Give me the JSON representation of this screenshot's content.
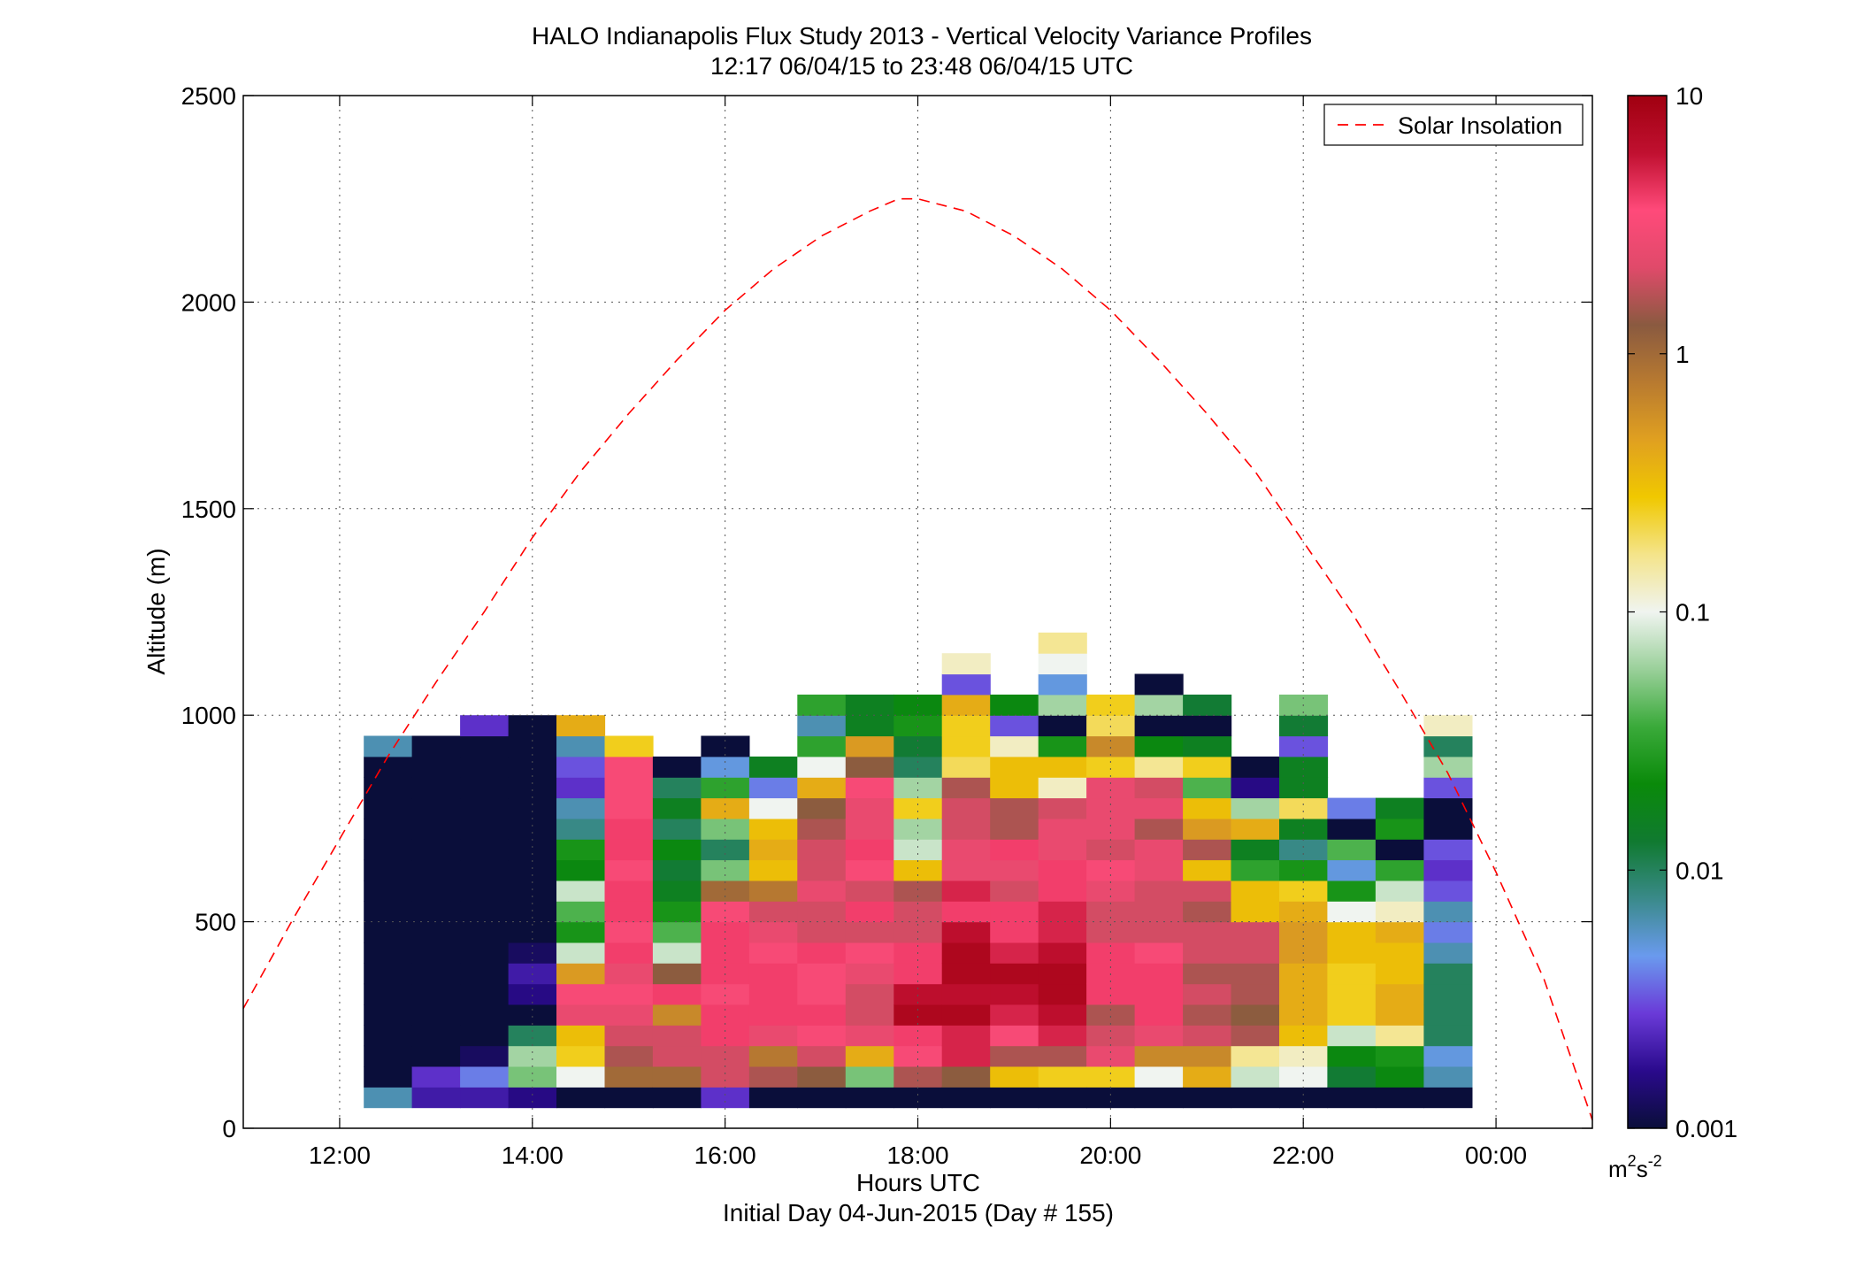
{
  "chart_data": {
    "type": "heatmap",
    "title": "HALO Indianapolis Flux Study 2013 - Vertical Velocity Variance Profiles",
    "subtitle": "12:17 06/04/15 to 23:48 06/04/15  UTC",
    "xlabel": "Hours UTC",
    "xlabel2": "Initial Day 04-Jun-2015 (Day # 155)",
    "ylabel": "Altitude (m)",
    "xlim": [
      11.0,
      25.0
    ],
    "ylim": [
      0,
      2500
    ],
    "grid": true,
    "x_ticks": [
      {
        "value": 12,
        "label": "12:00"
      },
      {
        "value": 14,
        "label": "14:00"
      },
      {
        "value": 16,
        "label": "16:00"
      },
      {
        "value": 18,
        "label": "18:00"
      },
      {
        "value": 20,
        "label": "20:00"
      },
      {
        "value": 22,
        "label": "22:00"
      },
      {
        "value": 24,
        "label": "00:00"
      }
    ],
    "y_ticks": [
      {
        "value": 0,
        "label": "0"
      },
      {
        "value": 500,
        "label": "500"
      },
      {
        "value": 1000,
        "label": "1000"
      },
      {
        "value": 1500,
        "label": "1500"
      },
      {
        "value": 2000,
        "label": "2000"
      },
      {
        "value": 2500,
        "label": "2500"
      }
    ],
    "cell_width_hours": 0.5,
    "cell_height_m": 50,
    "bin_start_altitude_m": 50,
    "colorbar": {
      "scale": "log",
      "range": [
        0.001,
        10
      ],
      "ticks": [
        {
          "value": 0.001,
          "label": "0.001"
        },
        {
          "value": 0.01,
          "label": "0.01"
        },
        {
          "value": 0.1,
          "label": "0.1"
        },
        {
          "value": 1,
          "label": "1"
        },
        {
          "value": 10,
          "label": "10"
        }
      ],
      "unit_base": "m",
      "unit_sup1": "2",
      "unit_mid": "s",
      "unit_sup2": "-2",
      "stops": [
        "#0a0e3a",
        "#2a0a8c",
        "#6a3ad8",
        "#6a9aee",
        "#3a8a8a",
        "#107a30",
        "#0a8a0a",
        "#3aaa3a",
        "#9ad09a",
        "#f0f4f0",
        "#f4e48a",
        "#f0c800",
        "#e0a020",
        "#b87a30",
        "#8a5a40",
        "#e04a6a",
        "#ff4a7a",
        "#c01030",
        "#a00010"
      ]
    },
    "legend": {
      "placement": "top-right",
      "entries": [
        {
          "name": "Solar Insolation",
          "color": "#ff0000",
          "style": "dashed"
        }
      ]
    },
    "series": [
      {
        "name": "Solar Insolation",
        "type": "line",
        "x": [
          11.0,
          11.5,
          12.0,
          12.5,
          13.0,
          13.5,
          14.0,
          14.5,
          15.0,
          15.5,
          16.0,
          16.5,
          17.0,
          17.5,
          17.8,
          18.0,
          18.5,
          19.0,
          19.5,
          20.0,
          20.5,
          21.0,
          21.5,
          22.0,
          22.5,
          23.0,
          23.5,
          24.0,
          24.5,
          25.0
        ],
        "y": [
          290,
          500,
          700,
          900,
          1080,
          1250,
          1430,
          1590,
          1730,
          1860,
          1980,
          2080,
          2160,
          2220,
          2250,
          2250,
          2220,
          2160,
          2080,
          1980,
          1860,
          1730,
          1590,
          1420,
          1250,
          1060,
          860,
          620,
          360,
          20
        ]
      }
    ],
    "columns": [
      {
        "x": 12.5,
        "log_values": [
          -2.2,
          -3.0,
          -3.0,
          -3.0,
          -3.0,
          -3.0,
          -3.0,
          -3.0,
          -3.0,
          -3.0,
          -3.0,
          -3.0,
          -3.0,
          -3.0,
          -3.0,
          -3.0,
          -3.0,
          -2.2
        ]
      },
      {
        "x": 13.0,
        "log_values": [
          -2.7,
          -2.6,
          -3.0,
          -3.0,
          -3.0,
          -3.0,
          -3.0,
          -3.0,
          -3.0,
          -3.0,
          -3.0,
          -3.0,
          -3.0,
          -3.0,
          -3.0,
          -3.0,
          -3.0,
          -3.0
        ]
      },
      {
        "x": 13.5,
        "log_values": [
          -2.7,
          -2.4,
          -2.9,
          -3.0,
          -3.0,
          -3.0,
          -3.0,
          -3.0,
          -3.0,
          -3.0,
          -3.0,
          -3.0,
          -3.0,
          -3.0,
          -3.0,
          -3.0,
          -3.0,
          -3.0,
          -2.6
        ]
      },
      {
        "x": 14.0,
        "log_values": [
          -2.8,
          -1.3,
          -1.2,
          -2.0,
          -3.0,
          -2.8,
          -2.7,
          -2.9,
          -3.0,
          -3.0,
          -3.0,
          -3.0,
          -3.0,
          -3.0,
          -3.0,
          -3.0,
          -3.0,
          -3.0,
          -3.0
        ]
      },
      {
        "x": 14.5,
        "log_values": [
          -3.0,
          -1.0,
          -0.6,
          -0.5,
          0.4,
          0.5,
          -0.3,
          -1.1,
          -1.6,
          -1.4,
          -1.1,
          -1.7,
          -1.6,
          -2.1,
          -2.2,
          -2.6,
          -2.5,
          -2.2,
          -0.4
        ]
      },
      {
        "x": 15.0,
        "log_values": [
          -3.0,
          0.0,
          0.2,
          0.3,
          0.4,
          0.5,
          0.4,
          0.6,
          0.5,
          0.6,
          0.6,
          0.5,
          0.6,
          0.6,
          0.5,
          0.5,
          0.5,
          -0.6
        ]
      },
      {
        "x": 15.5,
        "log_values": [
          -3.0,
          0.0,
          0.3,
          0.3,
          -0.2,
          0.6,
          0.1,
          -1.1,
          -1.4,
          -1.6,
          -1.8,
          -1.9,
          -1.7,
          -2.0,
          -1.8,
          -2.0,
          -3.0
        ]
      },
      {
        "x": 16.0,
        "log_values": [
          -2.6,
          0.3,
          0.3,
          0.6,
          0.6,
          0.5,
          0.6,
          0.6,
          0.6,
          0.5,
          0.0,
          -1.3,
          -2.0,
          -1.3,
          -0.4,
          -1.5,
          -2.3,
          -3.0
        ]
      },
      {
        "x": 16.5,
        "log_values": [
          -3.0,
          0.2,
          -0.1,
          0.4,
          0.6,
          0.6,
          0.6,
          0.5,
          0.4,
          0.3,
          -0.1,
          -0.5,
          -0.4,
          -0.5,
          -1.0,
          -2.4,
          -1.8
        ]
      },
      {
        "x": 17.0,
        "log_values": [
          -3.0,
          0.1,
          0.3,
          0.5,
          0.6,
          0.5,
          0.5,
          0.6,
          0.3,
          0.3,
          0.4,
          0.3,
          0.3,
          0.2,
          0.1,
          -0.4,
          -1.0,
          -1.5,
          -2.2,
          -1.5
        ]
      },
      {
        "x": 17.5,
        "log_values": [
          -3.0,
          -1.3,
          -0.4,
          0.4,
          0.3,
          0.3,
          0.4,
          0.5,
          0.3,
          0.6,
          0.3,
          0.5,
          0.6,
          0.4,
          0.4,
          0.5,
          0.1,
          -0.3,
          -1.8,
          -1.8
        ]
      },
      {
        "x": 18.0,
        "log_values": [
          -3.0,
          0.2,
          0.5,
          0.6,
          0.9,
          0.8,
          0.6,
          0.6,
          0.3,
          0.3,
          0.2,
          -0.5,
          -1.1,
          -1.2,
          -0.6,
          -1.2,
          -2.0,
          -1.9,
          -1.6,
          -1.7
        ]
      },
      {
        "x": 18.5,
        "log_values": [
          -3.0,
          0.1,
          0.7,
          0.7,
          0.9,
          0.8,
          0.9,
          0.9,
          0.8,
          0.6,
          0.7,
          0.4,
          0.4,
          0.3,
          0.3,
          0.2,
          -0.7,
          -0.6,
          -0.6,
          -0.4,
          -2.5,
          -0.9
        ]
      },
      {
        "x": 19.0,
        "log_values": [
          -3.0,
          -0.5,
          0.2,
          0.5,
          0.7,
          0.8,
          0.9,
          0.7,
          0.6,
          0.6,
          0.3,
          0.4,
          0.6,
          0.2,
          0.2,
          -0.5,
          -0.5,
          -0.9,
          -2.5,
          -1.7
        ]
      },
      {
        "x": 19.5,
        "log_values": [
          -3.0,
          -0.6,
          0.2,
          0.7,
          0.8,
          0.9,
          0.9,
          0.8,
          0.7,
          0.7,
          0.6,
          0.6,
          0.4,
          0.4,
          0.3,
          -0.9,
          -0.5,
          -1.6,
          -3.0,
          -1.2,
          -2.3,
          -1.0,
          -0.8
        ]
      },
      {
        "x": 20.0,
        "log_values": [
          -3.0,
          -0.6,
          0.4,
          0.3,
          0.2,
          0.6,
          0.6,
          0.6,
          0.3,
          0.3,
          0.4,
          0.5,
          0.3,
          0.4,
          0.4,
          0.4,
          -0.6,
          -0.2,
          -0.7,
          -0.6
        ]
      },
      {
        "x": 20.5,
        "log_values": [
          -3.0,
          -1.0,
          -0.2,
          0.4,
          0.6,
          0.6,
          0.6,
          0.5,
          0.3,
          0.3,
          0.3,
          0.4,
          0.4,
          0.2,
          0.4,
          0.3,
          -0.8,
          -1.7,
          -3.0,
          -1.2,
          -3.0
        ]
      },
      {
        "x": 21.0,
        "log_values": [
          -3.0,
          -0.4,
          -0.2,
          0.3,
          0.2,
          0.3,
          0.2,
          0.3,
          0.3,
          0.2,
          0.3,
          -0.5,
          0.2,
          -0.3,
          -0.5,
          -1.4,
          -0.6,
          -1.8,
          -3.0,
          -1.9
        ]
      },
      {
        "x": 21.5,
        "log_values": [
          -3.0,
          -1.1,
          -0.8,
          0.2,
          0.1,
          0.2,
          0.2,
          0.3,
          0.3,
          -0.5,
          -0.5,
          -1.5,
          -1.8,
          -0.4,
          -1.2,
          -2.8,
          -3.0
        ]
      },
      {
        "x": 22.0,
        "log_values": [
          -3.0,
          -1.0,
          -0.9,
          -0.5,
          -0.4,
          -0.4,
          -0.4,
          -0.3,
          -0.3,
          -0.4,
          -0.6,
          -1.6,
          -2.1,
          -1.8,
          -0.7,
          -1.8,
          -1.8,
          -2.5,
          -1.9,
          -1.3
        ]
      },
      {
        "x": 22.5,
        "log_values": [
          -3.0,
          -1.9,
          -1.7,
          -1.1,
          -0.6,
          -0.6,
          -0.6,
          -0.5,
          -0.5,
          -1.0,
          -1.6,
          -2.3,
          -1.4,
          -3.0,
          -2.4
        ]
      },
      {
        "x": 23.0,
        "log_values": [
          -3.0,
          -1.7,
          -1.6,
          -0.8,
          -0.4,
          -0.4,
          -0.5,
          -0.5,
          -0.4,
          -0.9,
          -1.1,
          -1.5,
          -3.0,
          -1.6,
          -1.8
        ]
      },
      {
        "x": 23.5,
        "log_values": [
          -3.0,
          -2.2,
          -2.3,
          -2.0,
          -2.0,
          -2.0,
          -2.0,
          -2.2,
          -2.4,
          -2.2,
          -2.5,
          -2.6,
          -2.5,
          -3.0,
          -3.0,
          -2.5,
          -1.2,
          -2.0,
          -0.9
        ]
      }
    ]
  }
}
